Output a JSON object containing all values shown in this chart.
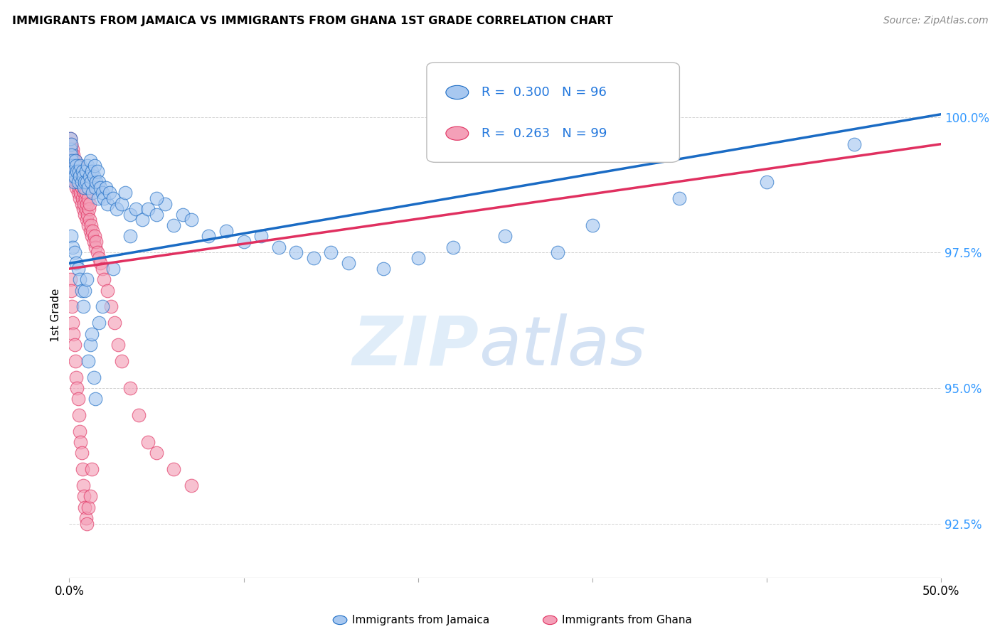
{
  "title": "IMMIGRANTS FROM JAMAICA VS IMMIGRANTS FROM GHANA 1ST GRADE CORRELATION CHART",
  "source": "Source: ZipAtlas.com",
  "ylabel": "1st Grade",
  "ytick_labels": [
    "92.5%",
    "95.0%",
    "97.5%",
    "100.0%"
  ],
  "ytick_values": [
    92.5,
    95.0,
    97.5,
    100.0
  ],
  "xlim": [
    0.0,
    50.0
  ],
  "ylim": [
    91.5,
    101.2
  ],
  "legend_jamaica": "Immigrants from Jamaica",
  "legend_ghana": "Immigrants from Ghana",
  "R_jamaica": 0.3,
  "N_jamaica": 96,
  "R_ghana": 0.263,
  "N_ghana": 99,
  "color_jamaica": "#A8C8F0",
  "color_ghana": "#F4A0B8",
  "color_jamaica_line": "#1A6BC4",
  "color_ghana_line": "#E03060",
  "background_color": "#FFFFFF",
  "jamaica_x": [
    0.05,
    0.08,
    0.1,
    0.12,
    0.15,
    0.18,
    0.2,
    0.22,
    0.25,
    0.28,
    0.3,
    0.35,
    0.4,
    0.45,
    0.5,
    0.55,
    0.6,
    0.65,
    0.7,
    0.75,
    0.8,
    0.85,
    0.9,
    0.95,
    1.0,
    1.05,
    1.1,
    1.15,
    1.2,
    1.25,
    1.3,
    1.35,
    1.4,
    1.45,
    1.5,
    1.55,
    1.6,
    1.65,
    1.7,
    1.8,
    1.9,
    2.0,
    2.1,
    2.2,
    2.3,
    2.5,
    2.7,
    3.0,
    3.2,
    3.5,
    3.8,
    4.2,
    4.5,
    5.0,
    5.5,
    6.0,
    6.5,
    7.0,
    8.0,
    9.0,
    10.0,
    11.0,
    12.0,
    13.0,
    14.0,
    15.0,
    16.0,
    18.0,
    20.0,
    22.0,
    25.0,
    28.0,
    30.0,
    35.0,
    40.0,
    45.0,
    0.1,
    0.2,
    0.3,
    0.4,
    0.5,
    0.6,
    0.7,
    0.8,
    0.9,
    1.0,
    1.1,
    1.2,
    1.3,
    1.4,
    1.5,
    1.7,
    1.9,
    2.5,
    3.5,
    5.0
  ],
  "jamaica_y": [
    99.4,
    99.6,
    99.5,
    99.3,
    99.2,
    99.0,
    99.1,
    98.9,
    99.0,
    98.8,
    98.9,
    99.2,
    99.1,
    99.0,
    98.8,
    99.0,
    98.9,
    99.1,
    98.8,
    99.0,
    98.9,
    98.7,
    98.8,
    99.0,
    98.8,
    99.1,
    98.7,
    98.9,
    99.2,
    98.8,
    99.0,
    98.6,
    98.9,
    99.1,
    98.7,
    98.8,
    99.0,
    98.5,
    98.8,
    98.7,
    98.6,
    98.5,
    98.7,
    98.4,
    98.6,
    98.5,
    98.3,
    98.4,
    98.6,
    98.2,
    98.3,
    98.1,
    98.3,
    98.2,
    98.4,
    98.0,
    98.2,
    98.1,
    97.8,
    97.9,
    97.7,
    97.8,
    97.6,
    97.5,
    97.4,
    97.5,
    97.3,
    97.2,
    97.4,
    97.6,
    97.8,
    97.5,
    98.0,
    98.5,
    98.8,
    99.5,
    97.8,
    97.6,
    97.5,
    97.3,
    97.2,
    97.0,
    96.8,
    96.5,
    96.8,
    97.0,
    95.5,
    95.8,
    96.0,
    95.2,
    94.8,
    96.2,
    96.5,
    97.2,
    97.8,
    98.5
  ],
  "ghana_x": [
    0.03,
    0.05,
    0.07,
    0.08,
    0.1,
    0.12,
    0.14,
    0.15,
    0.17,
    0.18,
    0.2,
    0.22,
    0.24,
    0.25,
    0.27,
    0.28,
    0.3,
    0.32,
    0.35,
    0.37,
    0.4,
    0.42,
    0.45,
    0.47,
    0.5,
    0.52,
    0.55,
    0.58,
    0.6,
    0.63,
    0.65,
    0.68,
    0.7,
    0.73,
    0.75,
    0.78,
    0.8,
    0.83,
    0.85,
    0.88,
    0.9,
    0.93,
    0.95,
    0.98,
    1.0,
    1.02,
    1.05,
    1.08,
    1.1,
    1.13,
    1.15,
    1.18,
    1.2,
    1.25,
    1.3,
    1.35,
    1.4,
    1.45,
    1.5,
    1.55,
    1.6,
    1.7,
    1.8,
    1.9,
    2.0,
    2.2,
    2.4,
    2.6,
    2.8,
    3.0,
    3.5,
    4.0,
    4.5,
    5.0,
    6.0,
    7.0,
    0.05,
    0.1,
    0.15,
    0.2,
    0.25,
    0.3,
    0.35,
    0.4,
    0.45,
    0.5,
    0.55,
    0.6,
    0.65,
    0.7,
    0.75,
    0.8,
    0.85,
    0.9,
    0.95,
    1.0,
    1.1,
    1.2,
    1.3
  ],
  "ghana_y": [
    99.5,
    99.3,
    99.6,
    99.4,
    99.2,
    99.5,
    99.3,
    99.1,
    99.4,
    99.2,
    99.0,
    99.3,
    99.1,
    98.9,
    99.2,
    99.0,
    98.8,
    99.1,
    98.9,
    99.2,
    98.7,
    99.0,
    98.8,
    99.1,
    98.6,
    98.9,
    98.7,
    99.0,
    98.5,
    98.8,
    98.6,
    98.9,
    98.4,
    98.7,
    98.5,
    98.8,
    98.3,
    98.6,
    98.4,
    98.7,
    98.2,
    98.5,
    98.3,
    98.6,
    98.1,
    98.4,
    98.2,
    98.5,
    98.0,
    98.3,
    98.1,
    98.4,
    97.9,
    98.0,
    97.8,
    97.9,
    97.7,
    97.8,
    97.6,
    97.7,
    97.5,
    97.4,
    97.3,
    97.2,
    97.0,
    96.8,
    96.5,
    96.2,
    95.8,
    95.5,
    95.0,
    94.5,
    94.0,
    93.8,
    93.5,
    93.2,
    97.0,
    96.8,
    96.5,
    96.2,
    96.0,
    95.8,
    95.5,
    95.2,
    95.0,
    94.8,
    94.5,
    94.2,
    94.0,
    93.8,
    93.5,
    93.2,
    93.0,
    92.8,
    92.6,
    92.5,
    92.8,
    93.0,
    93.5
  ]
}
